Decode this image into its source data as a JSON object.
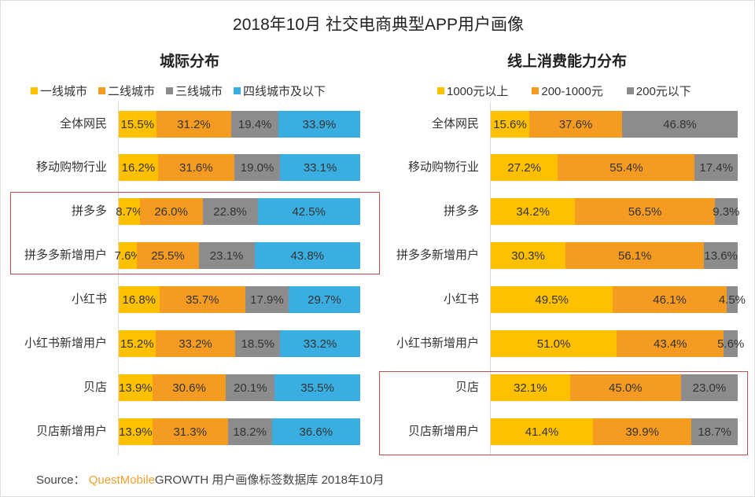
{
  "title": "2018年10月 社交电商典型APP用户画像",
  "source": {
    "prefix": "Source：",
    "brand": "QuestMobile",
    "text": "GROWTH 用户画像标签数据库 2018年10月"
  },
  "chart_data": [
    {
      "type": "bar",
      "orientation": "horizontal",
      "stacked": "percent",
      "title": "城际分布",
      "categories": [
        "全体网民",
        "移动购物行业",
        "拼多多",
        "拼多多新增用户",
        "小红书",
        "小红书新增用户",
        "贝店",
        "贝店新增用户"
      ],
      "series": [
        {
          "name": "一线城市",
          "color": "#ffc000",
          "values": [
            15.5,
            16.2,
            8.7,
            7.6,
            16.8,
            15.2,
            13.9,
            13.9
          ]
        },
        {
          "name": "二线城市",
          "color": "#f59b22",
          "values": [
            31.2,
            31.6,
            26.0,
            25.5,
            35.7,
            33.2,
            30.6,
            31.3
          ]
        },
        {
          "name": "三线城市",
          "color": "#8c8c8c",
          "values": [
            19.4,
            19.0,
            22.8,
            23.1,
            17.9,
            18.5,
            20.1,
            18.2
          ]
        },
        {
          "name": "四线城市及以下",
          "color": "#3aaee0",
          "values": [
            33.9,
            33.1,
            42.5,
            43.8,
            29.7,
            33.2,
            35.5,
            36.6
          ]
        }
      ],
      "highlighted": [
        "拼多多",
        "拼多多新增用户"
      ],
      "legend": "top"
    },
    {
      "type": "bar",
      "orientation": "horizontal",
      "stacked": "percent",
      "title": "线上消费能力分布",
      "categories": [
        "全体网民",
        "移动购物行业",
        "拼多多",
        "拼多多新增用户",
        "小红书",
        "小红书新增用户",
        "贝店",
        "贝店新增用户"
      ],
      "series": [
        {
          "name": "1000元以上",
          "color": "#ffc000",
          "values": [
            15.6,
            27.2,
            34.2,
            30.3,
            49.5,
            51.0,
            32.1,
            41.4
          ]
        },
        {
          "name": "200-1000元",
          "color": "#f59b22",
          "values": [
            37.6,
            55.4,
            56.5,
            56.1,
            46.1,
            43.4,
            45.0,
            39.9
          ]
        },
        {
          "name": "200元以下",
          "color": "#8c8c8c",
          "values": [
            46.8,
            17.4,
            9.3,
            13.6,
            4.5,
            5.6,
            23.0,
            18.7
          ]
        }
      ],
      "highlighted": [
        "贝店",
        "贝店新增用户"
      ],
      "legend": "top"
    }
  ]
}
